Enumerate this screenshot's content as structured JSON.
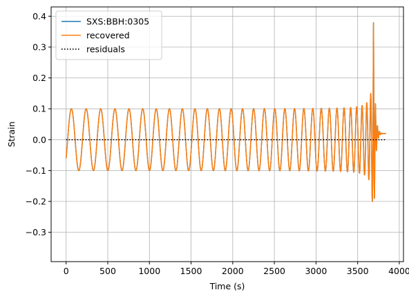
{
  "chart_data": {
    "type": "line",
    "xlabel": "Time (s)",
    "ylabel": "Strain",
    "xlim": [
      -180,
      4050
    ],
    "ylim": [
      -0.395,
      0.43
    ],
    "xticks": [
      0,
      500,
      1000,
      1500,
      2000,
      2500,
      3000,
      3500,
      4000
    ],
    "yticks": [
      -0.3,
      -0.2,
      -0.1,
      0.0,
      0.1,
      0.2,
      0.3,
      0.4
    ],
    "yticklabels": [
      "−0.3",
      "−0.2",
      "−0.1",
      "0.0",
      "0.1",
      "0.2",
      "0.3",
      "0.4"
    ],
    "grid": true,
    "legend_position": "top-left",
    "series": [
      {
        "name": "SXS:BBH:0305",
        "color": "#1f77b4",
        "style": "solid",
        "waveform": {
          "t_start": 0,
          "t_merger": 3690,
          "t_end": 3840,
          "initial_amplitude": 0.1,
          "peak_amplitude": 0.38,
          "initial_period": 180,
          "final_period": 26,
          "initial_value": -0.06,
          "ringdown_value": 0.02
        }
      },
      {
        "name": "recovered",
        "color": "#ff7f0e",
        "style": "solid",
        "waveform": {
          "t_start": 0,
          "t_merger": 3690,
          "t_end": 3840,
          "initial_amplitude": 0.1,
          "peak_amplitude": 0.38,
          "initial_period": 180,
          "final_period": 26,
          "initial_value": -0.06,
          "ringdown_value": 0.02
        }
      },
      {
        "name": "residuals",
        "color": "#000000",
        "style": "dotted",
        "x": [
          0,
          3840
        ],
        "y": [
          0.0,
          0.0
        ]
      }
    ]
  }
}
